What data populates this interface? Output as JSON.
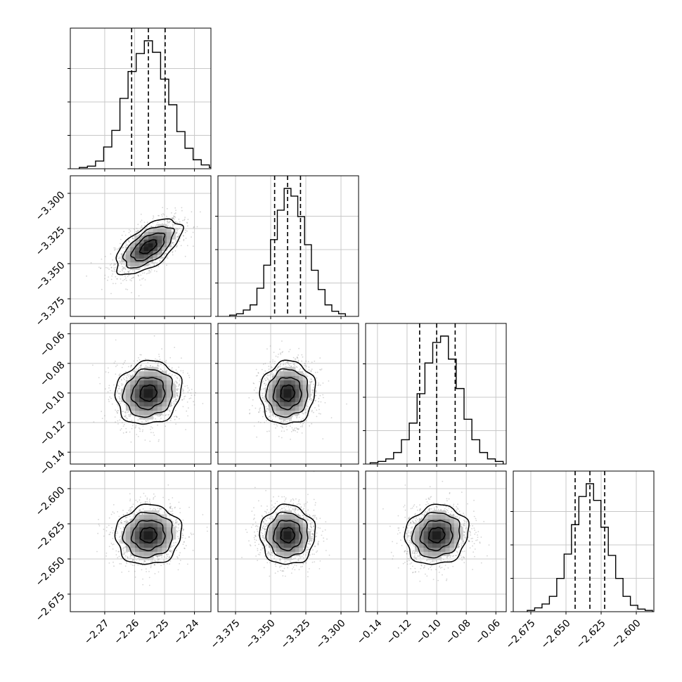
{
  "chart_data": {
    "type": "corner",
    "axes_labels": [],
    "ticks": [
      [
        "-2.27",
        "-2.26",
        "-2.25",
        "-2.24"
      ],
      [
        "-3.375",
        "-3.350",
        "-3.325",
        "-3.300"
      ],
      [
        "-0.14",
        "-0.12",
        "-0.10",
        "-0.08",
        "-0.06"
      ],
      [
        "-2.675",
        "-2.650",
        "-2.625",
        "-2.600"
      ]
    ],
    "tick_values": [
      [
        -2.27,
        -2.26,
        -2.25,
        -2.24
      ],
      [
        -3.375,
        -3.35,
        -3.325,
        -3.3
      ],
      [
        -0.14,
        -0.12,
        -0.1,
        -0.08,
        -0.06
      ],
      [
        -2.675,
        -2.65,
        -2.625,
        -2.6
      ]
    ],
    "ranges": [
      [
        -2.2815,
        -2.2345
      ],
      [
        -3.3875,
        -3.2875
      ],
      [
        -0.148,
        -0.053
      ],
      [
        -2.6875,
        -2.5875
      ]
    ],
    "medians": [
      -2.2554,
      -3.338,
      -0.1,
      -2.633
    ],
    "sigmas": [
      0.0055,
      0.0098,
      0.0107,
      0.0106
    ],
    "quantile_lines": [
      [
        -2.261,
        -2.2554,
        -2.2498
      ],
      [
        -3.3472,
        -3.338,
        -3.3288
      ],
      [
        -0.1115,
        -0.1,
        -0.0875
      ],
      [
        -2.6435,
        -2.633,
        -2.6225
      ]
    ],
    "histograms": [
      {
        "param": 0,
        "counts": [
          1,
          2,
          6,
          17,
          30,
          55,
          76,
          90,
          100,
          91,
          70,
          50,
          29,
          16,
          7,
          3,
          1
        ]
      },
      {
        "param": 1,
        "counts": [
          1,
          2,
          5,
          9,
          22,
          40,
          60,
          83,
          100,
          94,
          78,
          56,
          36,
          21,
          9,
          4,
          2
        ]
      },
      {
        "param": 2,
        "counts": [
          1,
          2,
          4,
          9,
          19,
          32,
          55,
          79,
          95,
          100,
          82,
          59,
          35,
          19,
          9,
          4,
          2
        ]
      },
      {
        "param": 3,
        "counts": [
          1,
          3,
          6,
          12,
          26,
          45,
          68,
          90,
          100,
          87,
          66,
          44,
          26,
          12,
          5,
          2,
          1
        ]
      }
    ],
    "pair_correlations": {
      "1,0": 0.6,
      "2,0": 0.1,
      "2,1": 0.05,
      "3,0": 0.05,
      "3,1": 0.0,
      "3,2": 0.1
    },
    "contour_levels_sigma": [
      0.5,
      1.0,
      1.5,
      2.0
    ],
    "grid": true,
    "color": "#000000",
    "scatter_color": "#888888"
  }
}
